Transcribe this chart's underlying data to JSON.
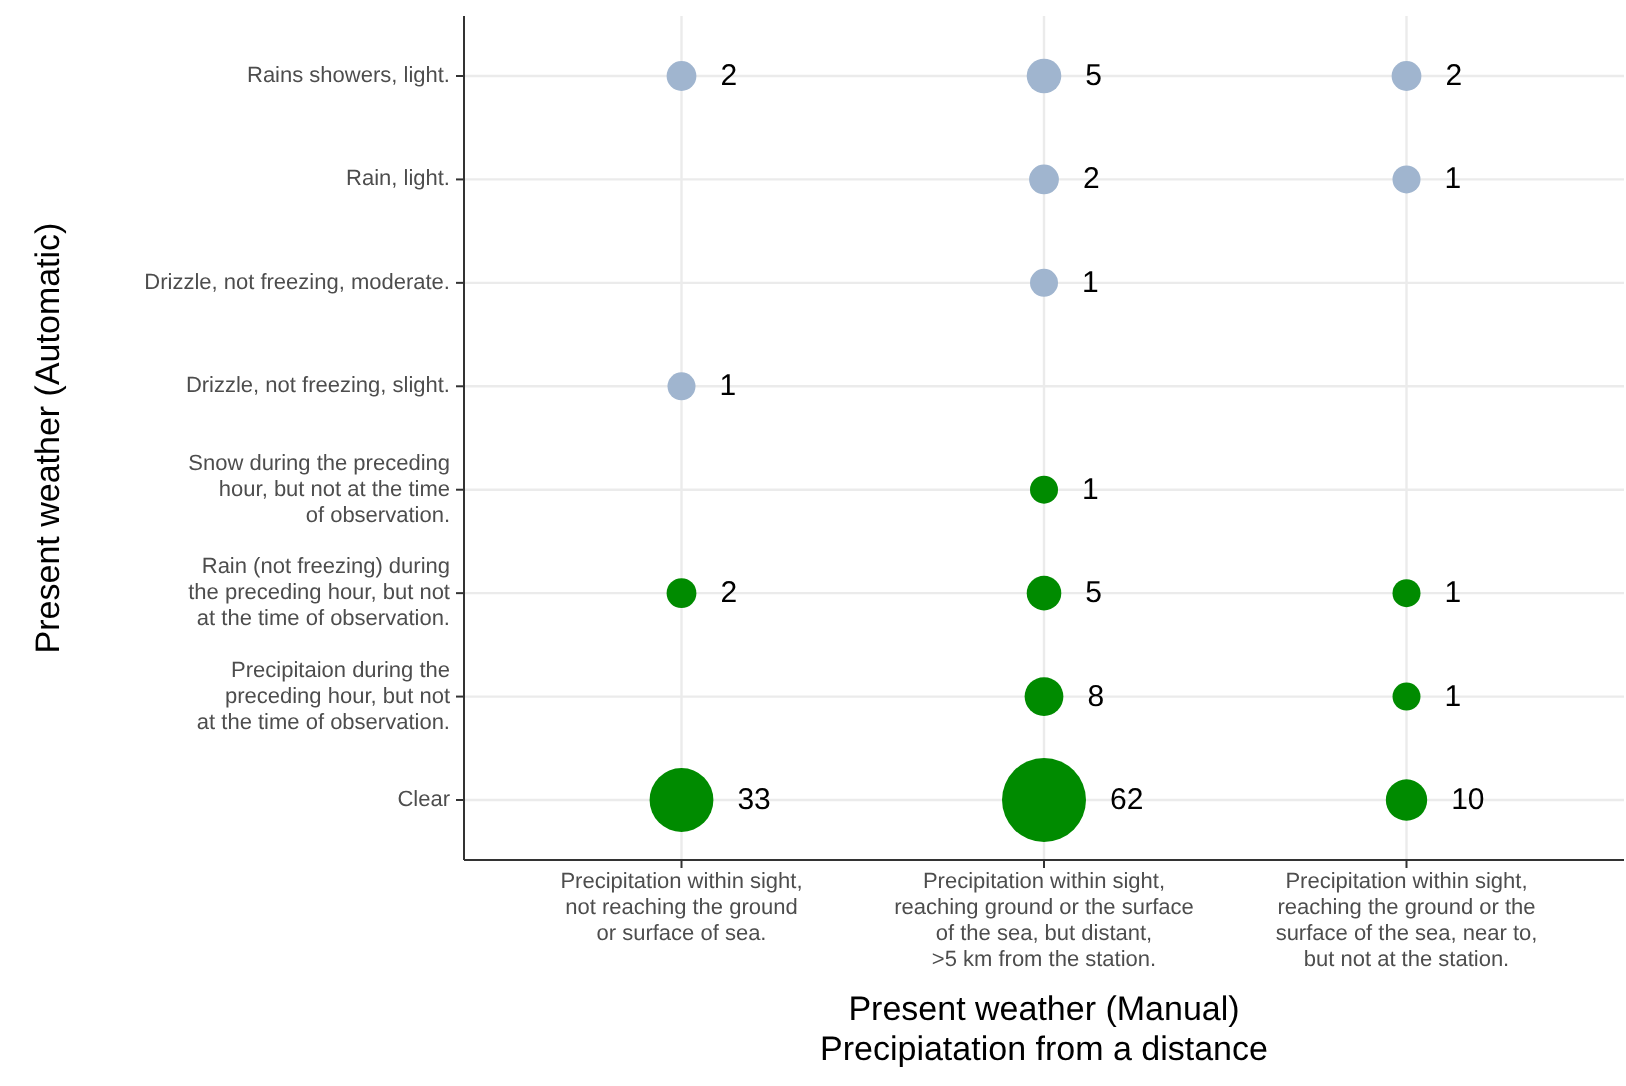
{
  "chart_data": {
    "type": "heatmap",
    "xlabel": "Present weather (Manual)\nPrecipiatation from a distance",
    "ylabel": "Present weather (Automatic)",
    "categories": [
      "Precipitation within sight,\nnot reaching the ground\nor surface of sea.",
      "Precipitation within sight,\nreaching ground or the surface\nof the sea, but distant,\n>5 km from the station.",
      "Precipitation within sight,\nreaching the ground or the\nsurface of the sea, near to,\nbut not at the station."
    ],
    "y_categories": [
      "Rains showers, light.",
      "Rain, light.",
      "Drizzle, not freezing, moderate.",
      "Drizzle, not freezing, slight.",
      "Snow during the preceding\nhour, but not at the time\nof observation.",
      "Rain (not freezing) during\nthe preceding hour, but not\nat the time of observation.",
      "Precipitaion during the\npreceding hour, but not\nat the time of observation.",
      "Clear"
    ],
    "cells": [
      [
        2,
        5,
        2
      ],
      [
        null,
        2,
        1
      ],
      [
        null,
        1,
        null
      ],
      [
        1,
        null,
        null
      ],
      [
        null,
        1,
        null
      ],
      [
        2,
        5,
        1
      ],
      [
        null,
        8,
        1
      ],
      [
        33,
        62,
        10
      ]
    ],
    "colors": [
      "#a0b5cf",
      "#a0b5cf",
      "#a0b5cf",
      "#a0b5cf",
      "#008b00",
      "#008b00",
      "#008b00",
      "#008b00"
    ],
    "data_labels": true,
    "grid": true
  }
}
